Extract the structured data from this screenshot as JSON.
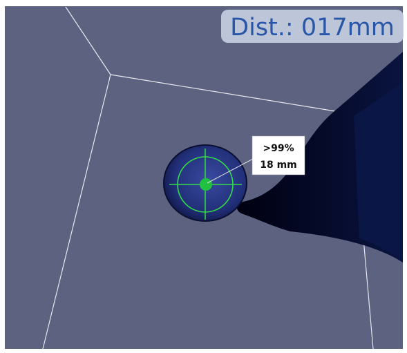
{
  "hud": {
    "distance": "Dist.: 017mm"
  },
  "target": {
    "probability": ">99%",
    "size": "18 mm"
  }
}
